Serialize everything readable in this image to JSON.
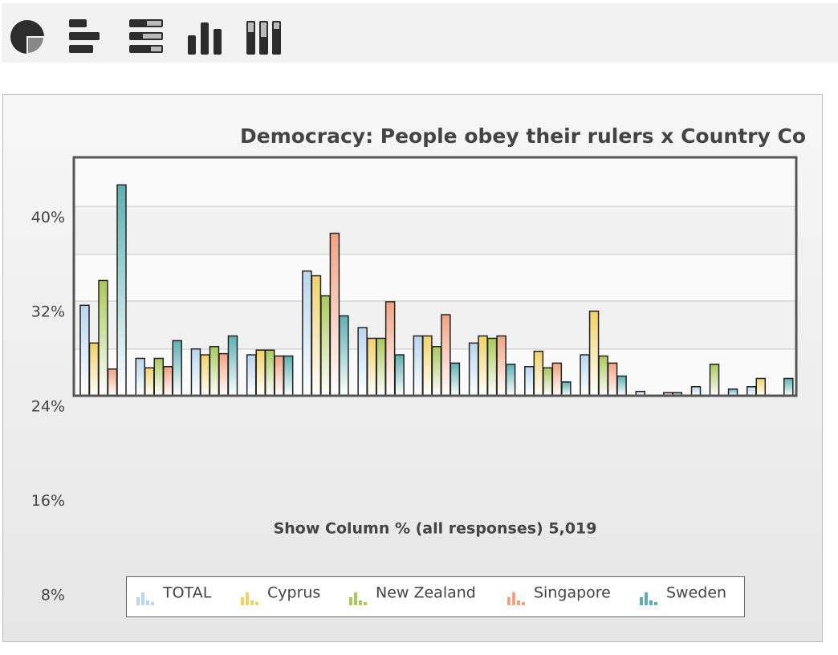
{
  "chart_data": {
    "type": "bar",
    "title": "Democracy: People obey their rulers x Country Co",
    "x_label": "Show Column % (all responses) 5,019",
    "categories": [
      null,
      null,
      null,
      null,
      null,
      null,
      null,
      null,
      null,
      null,
      null,
      null,
      null
    ],
    "ylim": [
      8,
      45
    ],
    "yticks": [
      {
        "value": 40,
        "label": "40%"
      },
      {
        "value": 32,
        "label": "32%"
      },
      {
        "value": 24,
        "label": "24%"
      },
      {
        "value": 16,
        "label": "16%"
      },
      {
        "value": 8,
        "label": "8%"
      }
    ],
    "series": [
      {
        "name": "TOTAL",
        "color": "#b9d6ef",
        "values": [
          32.6,
          28.1,
          28.9,
          28.4,
          35.5,
          30.7,
          30.0,
          29.4,
          27.4,
          28.4,
          25.3,
          25.7,
          25.7
        ]
      },
      {
        "name": "Cyprus",
        "color": "#f2d267",
        "values": [
          29.4,
          27.3,
          28.4,
          28.8,
          35.1,
          29.8,
          30.0,
          30.0,
          28.7,
          32.1,
          null,
          null,
          26.4
        ]
      },
      {
        "name": "New Zealand",
        "color": "#a9c95b",
        "values": [
          34.7,
          28.1,
          29.1,
          28.8,
          33.4,
          29.8,
          29.1,
          29.8,
          27.3,
          28.3,
          null,
          27.6,
          null
        ]
      },
      {
        "name": "Singapore",
        "color": "#f2a283",
        "values": [
          27.2,
          27.4,
          28.5,
          28.3,
          38.7,
          32.9,
          31.8,
          30.0,
          27.7,
          27.7,
          25.2,
          null,
          null
        ]
      },
      {
        "name": "Sweden",
        "color": "#5db0b2",
        "values": [
          42.8,
          29.6,
          30.0,
          28.3,
          31.7,
          28.4,
          27.7,
          27.6,
          26.1,
          26.6,
          25.2,
          25.5,
          26.4
        ]
      }
    ],
    "legend": "bottom"
  }
}
